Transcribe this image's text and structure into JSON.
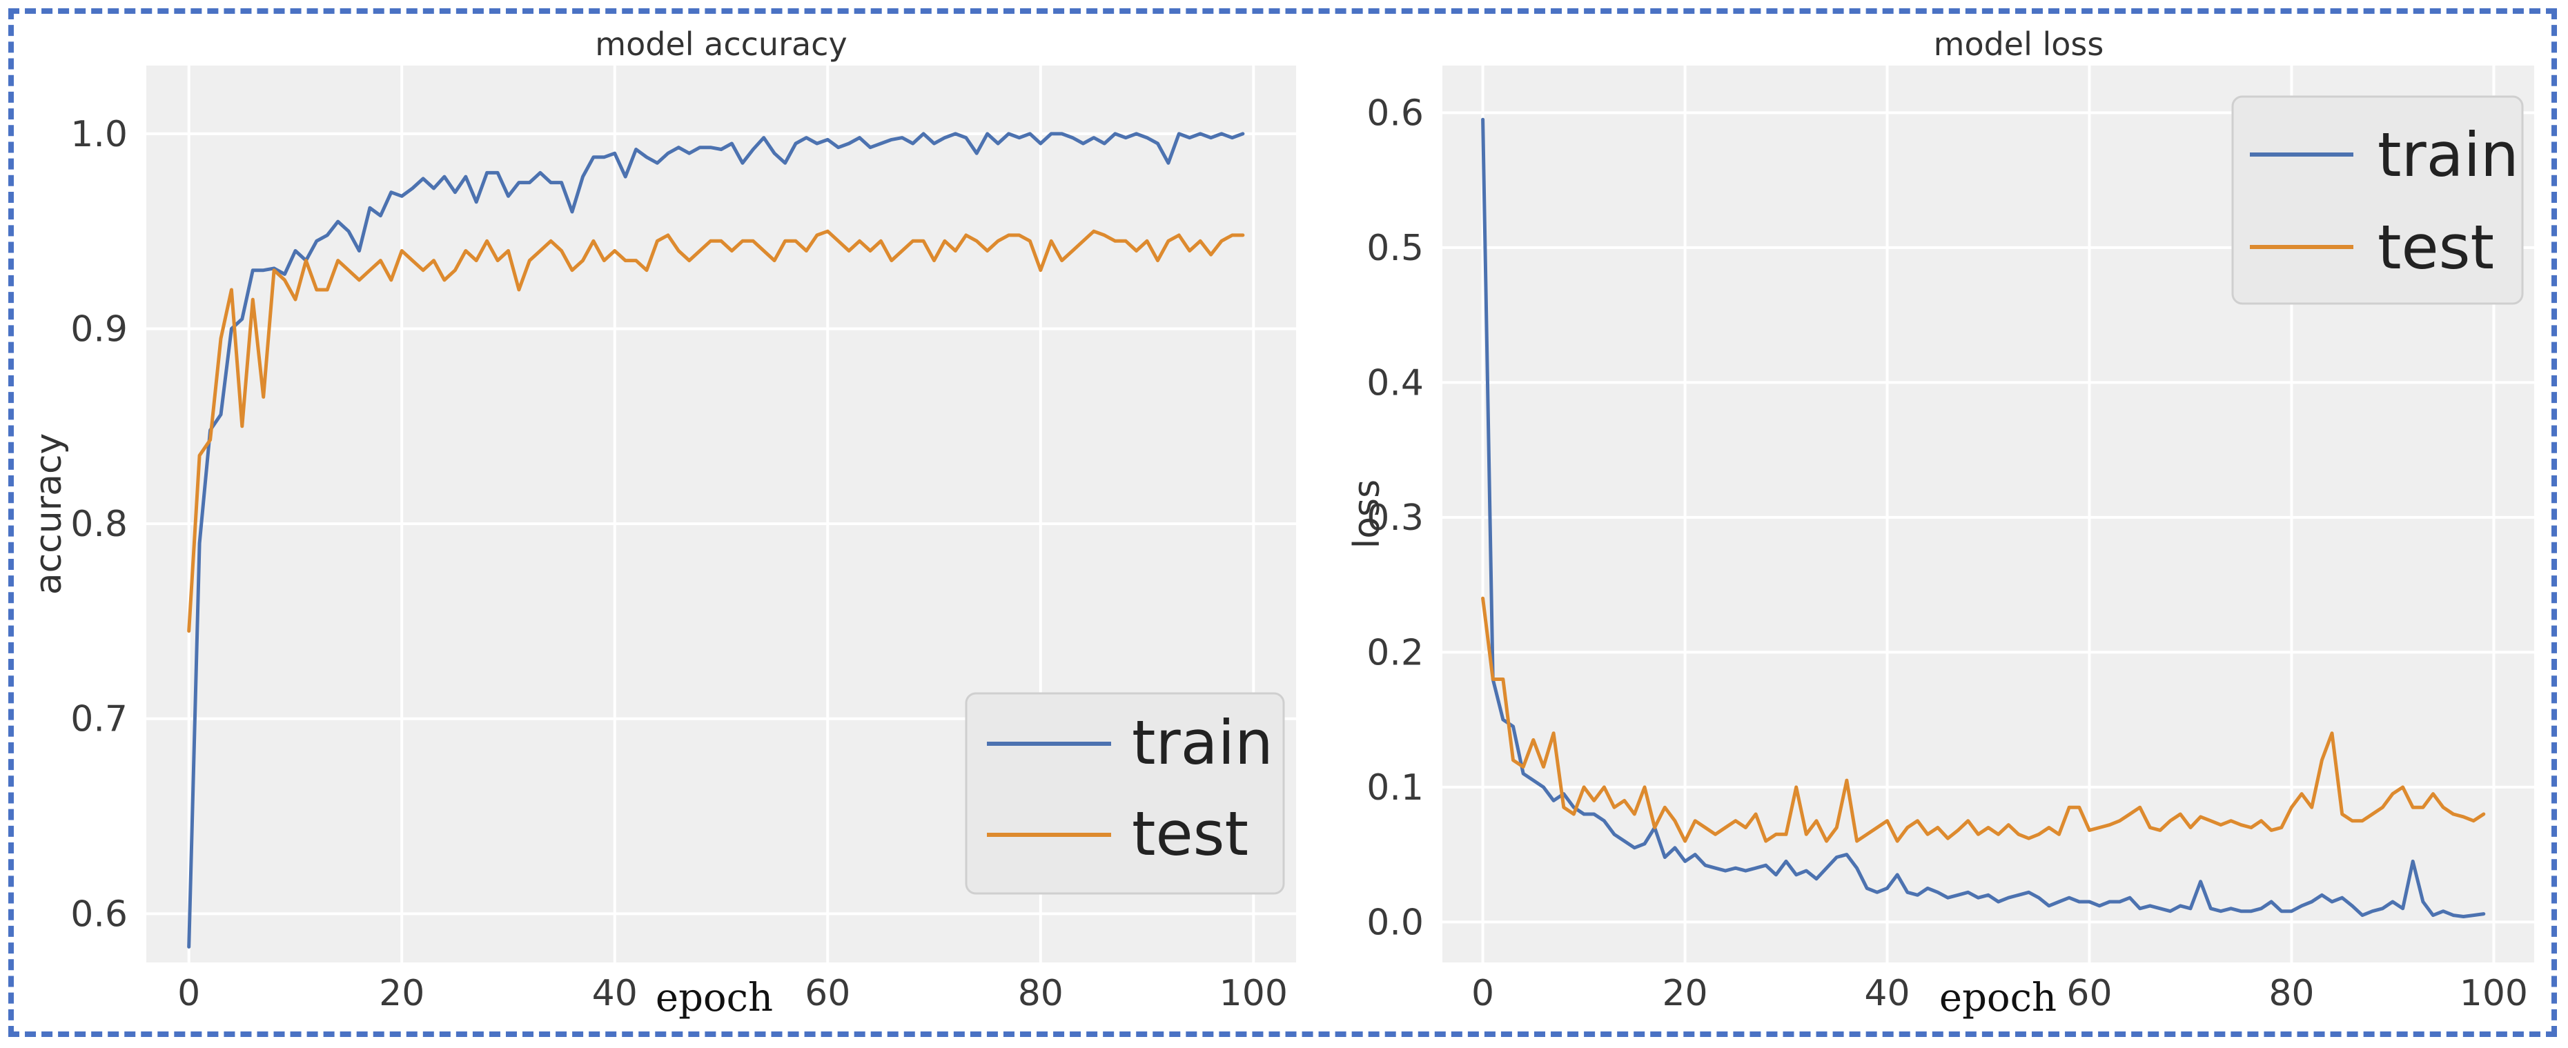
{
  "colors": {
    "train": "#4c72b0",
    "test": "#dd8a2e",
    "frame": "#4a72c4"
  },
  "chart_data": [
    {
      "type": "line",
      "title": "model accuracy",
      "xlabel": "epoch",
      "ylabel": "accuracy",
      "xlim": [
        -4,
        104
      ],
      "ylim": [
        0.575,
        1.035
      ],
      "xticks": [
        0,
        20,
        40,
        60,
        80,
        100
      ],
      "xtick_labels": [
        "0",
        "20",
        "40",
        "60",
        "80",
        "100"
      ],
      "yticks": [
        0.6,
        0.7,
        0.8,
        0.9,
        1.0
      ],
      "ytick_labels": [
        "0.6",
        "0.7",
        "0.8",
        "0.9",
        "1.0"
      ],
      "legend": {
        "placement": "lower-right",
        "entries": [
          "train",
          "test"
        ]
      },
      "series": [
        {
          "name": "train",
          "values": [
            0.583,
            0.79,
            0.848,
            0.856,
            0.9,
            0.905,
            0.93,
            0.93,
            0.931,
            0.928,
            0.94,
            0.935,
            0.945,
            0.948,
            0.955,
            0.95,
            0.94,
            0.962,
            0.958,
            0.97,
            0.968,
            0.972,
            0.977,
            0.972,
            0.978,
            0.97,
            0.978,
            0.965,
            0.98,
            0.98,
            0.968,
            0.975,
            0.975,
            0.98,
            0.975,
            0.975,
            0.96,
            0.978,
            0.988,
            0.988,
            0.99,
            0.978,
            0.992,
            0.988,
            0.985,
            0.99,
            0.993,
            0.99,
            0.993,
            0.993,
            0.992,
            0.995,
            0.985,
            0.992,
            0.998,
            0.99,
            0.985,
            0.995,
            0.998,
            0.995,
            0.997,
            0.993,
            0.995,
            0.998,
            0.993,
            0.995,
            0.997,
            0.998,
            0.995,
            1.0,
            0.995,
            0.998,
            1.0,
            0.998,
            0.99,
            1.0,
            0.995,
            1.0,
            0.998,
            1.0,
            0.995,
            1.0,
            1.0,
            0.998,
            0.995,
            0.998,
            0.995,
            1.0,
            0.998,
            1.0,
            0.998,
            0.995,
            0.985,
            1.0,
            0.998,
            1.0,
            0.998,
            1.0,
            0.998,
            1.0
          ]
        },
        {
          "name": "test",
          "values": [
            0.745,
            0.835,
            0.843,
            0.895,
            0.92,
            0.85,
            0.915,
            0.865,
            0.93,
            0.925,
            0.915,
            0.935,
            0.92,
            0.92,
            0.935,
            0.93,
            0.925,
            0.93,
            0.935,
            0.925,
            0.94,
            0.935,
            0.93,
            0.935,
            0.925,
            0.93,
            0.94,
            0.935,
            0.945,
            0.935,
            0.94,
            0.92,
            0.935,
            0.94,
            0.945,
            0.94,
            0.93,
            0.935,
            0.945,
            0.935,
            0.94,
            0.935,
            0.935,
            0.93,
            0.945,
            0.948,
            0.94,
            0.935,
            0.94,
            0.945,
            0.945,
            0.94,
            0.945,
            0.945,
            0.94,
            0.935,
            0.945,
            0.945,
            0.94,
            0.948,
            0.95,
            0.945,
            0.94,
            0.945,
            0.94,
            0.945,
            0.935,
            0.94,
            0.945,
            0.945,
            0.935,
            0.945,
            0.94,
            0.948,
            0.945,
            0.94,
            0.945,
            0.948,
            0.948,
            0.945,
            0.93,
            0.945,
            0.935,
            0.94,
            0.945,
            0.95,
            0.948,
            0.945,
            0.945,
            0.94,
            0.945,
            0.935,
            0.945,
            0.948,
            0.94,
            0.945,
            0.938,
            0.945,
            0.948,
            0.948
          ]
        }
      ]
    },
    {
      "type": "line",
      "title": "model loss",
      "xlabel": "epoch",
      "ylabel": "loss",
      "xlim": [
        -4,
        104
      ],
      "ylim": [
        -0.03,
        0.635
      ],
      "xticks": [
        0,
        20,
        40,
        60,
        80,
        100
      ],
      "xtick_labels": [
        "0",
        "20",
        "40",
        "60",
        "80",
        "100"
      ],
      "yticks": [
        0.0,
        0.1,
        0.2,
        0.3,
        0.4,
        0.5,
        0.6
      ],
      "ytick_labels": [
        "0.0",
        "0.1",
        "0.2",
        "0.3",
        "0.4",
        "0.5",
        "0.6"
      ],
      "legend": {
        "placement": "upper-right",
        "entries": [
          "train",
          "test"
        ]
      },
      "series": [
        {
          "name": "train",
          "values": [
            0.595,
            0.18,
            0.15,
            0.145,
            0.11,
            0.105,
            0.1,
            0.09,
            0.095,
            0.085,
            0.08,
            0.08,
            0.075,
            0.065,
            0.06,
            0.055,
            0.058,
            0.07,
            0.048,
            0.055,
            0.045,
            0.05,
            0.042,
            0.04,
            0.038,
            0.04,
            0.038,
            0.04,
            0.042,
            0.035,
            0.045,
            0.035,
            0.038,
            0.032,
            0.04,
            0.048,
            0.05,
            0.04,
            0.025,
            0.022,
            0.025,
            0.035,
            0.022,
            0.02,
            0.025,
            0.022,
            0.018,
            0.02,
            0.022,
            0.018,
            0.02,
            0.015,
            0.018,
            0.02,
            0.022,
            0.018,
            0.012,
            0.015,
            0.018,
            0.015,
            0.015,
            0.012,
            0.015,
            0.015,
            0.018,
            0.01,
            0.012,
            0.01,
            0.008,
            0.012,
            0.01,
            0.03,
            0.01,
            0.008,
            0.01,
            0.008,
            0.008,
            0.01,
            0.015,
            0.008,
            0.008,
            0.012,
            0.015,
            0.02,
            0.015,
            0.018,
            0.012,
            0.005,
            0.008,
            0.01,
            0.015,
            0.01,
            0.045,
            0.015,
            0.005,
            0.008,
            0.005,
            0.004,
            0.005,
            0.006
          ]
        },
        {
          "name": "test",
          "values": [
            0.24,
            0.18,
            0.18,
            0.12,
            0.115,
            0.135,
            0.115,
            0.14,
            0.085,
            0.08,
            0.1,
            0.09,
            0.1,
            0.085,
            0.09,
            0.08,
            0.1,
            0.07,
            0.085,
            0.075,
            0.06,
            0.075,
            0.07,
            0.065,
            0.07,
            0.075,
            0.07,
            0.08,
            0.06,
            0.065,
            0.065,
            0.1,
            0.065,
            0.075,
            0.06,
            0.07,
            0.105,
            0.06,
            0.065,
            0.07,
            0.075,
            0.06,
            0.07,
            0.075,
            0.065,
            0.07,
            0.062,
            0.068,
            0.075,
            0.065,
            0.07,
            0.065,
            0.072,
            0.065,
            0.062,
            0.065,
            0.07,
            0.065,
            0.085,
            0.085,
            0.068,
            0.07,
            0.072,
            0.075,
            0.08,
            0.085,
            0.07,
            0.068,
            0.075,
            0.08,
            0.07,
            0.078,
            0.075,
            0.072,
            0.075,
            0.072,
            0.07,
            0.075,
            0.068,
            0.07,
            0.085,
            0.095,
            0.085,
            0.12,
            0.14,
            0.08,
            0.075,
            0.075,
            0.08,
            0.085,
            0.095,
            0.1,
            0.085,
            0.085,
            0.095,
            0.085,
            0.08,
            0.078,
            0.075,
            0.08
          ]
        }
      ]
    }
  ]
}
